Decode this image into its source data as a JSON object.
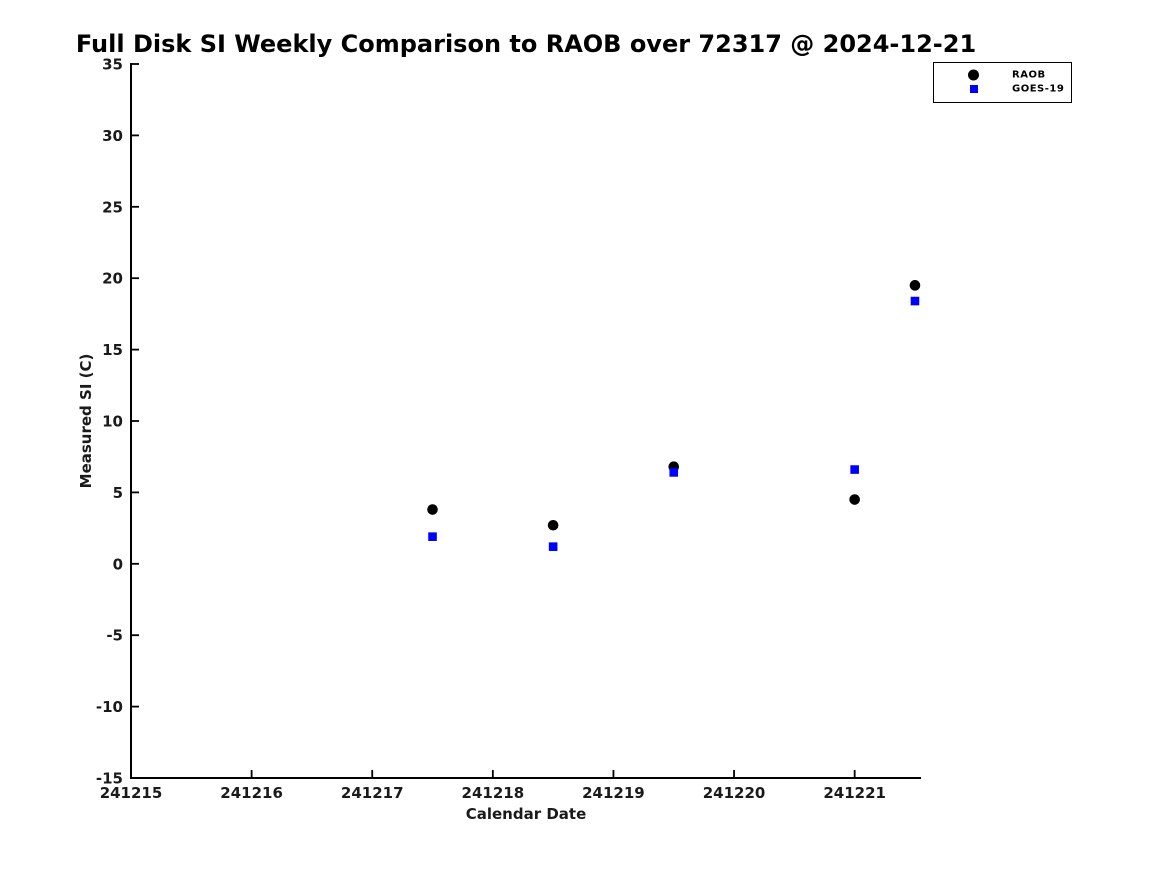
{
  "chart_data": {
    "type": "scatter",
    "title": "Full Disk SI Weekly Comparison to RAOB over 72317 @ 2024-12-21",
    "xlabel": "Calendar Date",
    "ylabel": "Measured SI (C)",
    "xlim": [
      241215,
      241221.55
    ],
    "ylim": [
      -15,
      35
    ],
    "x_ticks": [
      241215,
      241216,
      241217,
      241218,
      241219,
      241220,
      241221
    ],
    "y_ticks": [
      -15,
      -10,
      -5,
      0,
      5,
      10,
      15,
      20,
      25,
      30,
      35
    ],
    "grid": false,
    "legend_position": "top-right",
    "series": [
      {
        "name": "RAOB",
        "marker": "circle",
        "color": "#000000",
        "points": [
          {
            "x": 241217.5,
            "y": 3.8
          },
          {
            "x": 241218.5,
            "y": 2.7
          },
          {
            "x": 241219.5,
            "y": 6.8
          },
          {
            "x": 241221.0,
            "y": 4.5
          },
          {
            "x": 241221.5,
            "y": 19.5
          }
        ]
      },
      {
        "name": "GOES-19",
        "marker": "square",
        "color": "#0000ff",
        "points": [
          {
            "x": 241217.5,
            "y": 1.9
          },
          {
            "x": 241218.5,
            "y": 1.2
          },
          {
            "x": 241219.5,
            "y": 6.4
          },
          {
            "x": 241221.0,
            "y": 6.6
          },
          {
            "x": 241221.5,
            "y": 18.4
          }
        ]
      }
    ]
  }
}
